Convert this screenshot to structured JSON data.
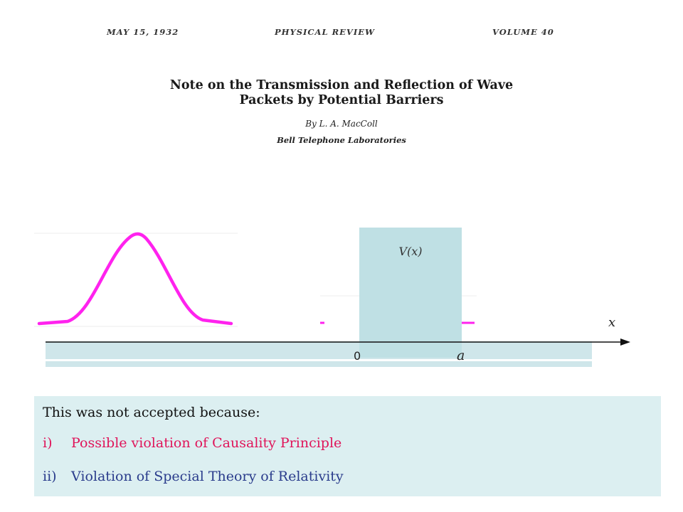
{
  "header": {
    "date": "MAY 15, 1932",
    "journal": "PHYSICAL REVIEW",
    "volume": "VOLUME 40"
  },
  "paper": {
    "title": "Note on the Transmission and Reflection of Wave\nPackets by Potential Barriers",
    "author": "By L. A. MacColl",
    "affiliation": "Bell Telephone Laboratories"
  },
  "diagram": {
    "barrier_label": "V(x)",
    "x_axis_label": "x",
    "tick_zero": "0",
    "tick_a": "a",
    "packet_color": "#ff22ee",
    "barrier_color": "#bfe0e4",
    "axis_color": "#111111"
  },
  "notes": {
    "heading": "This was not accepted because:",
    "items": [
      {
        "num": "i)",
        "text": "Possible violation of Causality Principle",
        "color": "#e0145a"
      },
      {
        "num": "ii)",
        "text": "Violation of Special Theory of Relativity",
        "color": "#2a3c8c"
      }
    ]
  }
}
